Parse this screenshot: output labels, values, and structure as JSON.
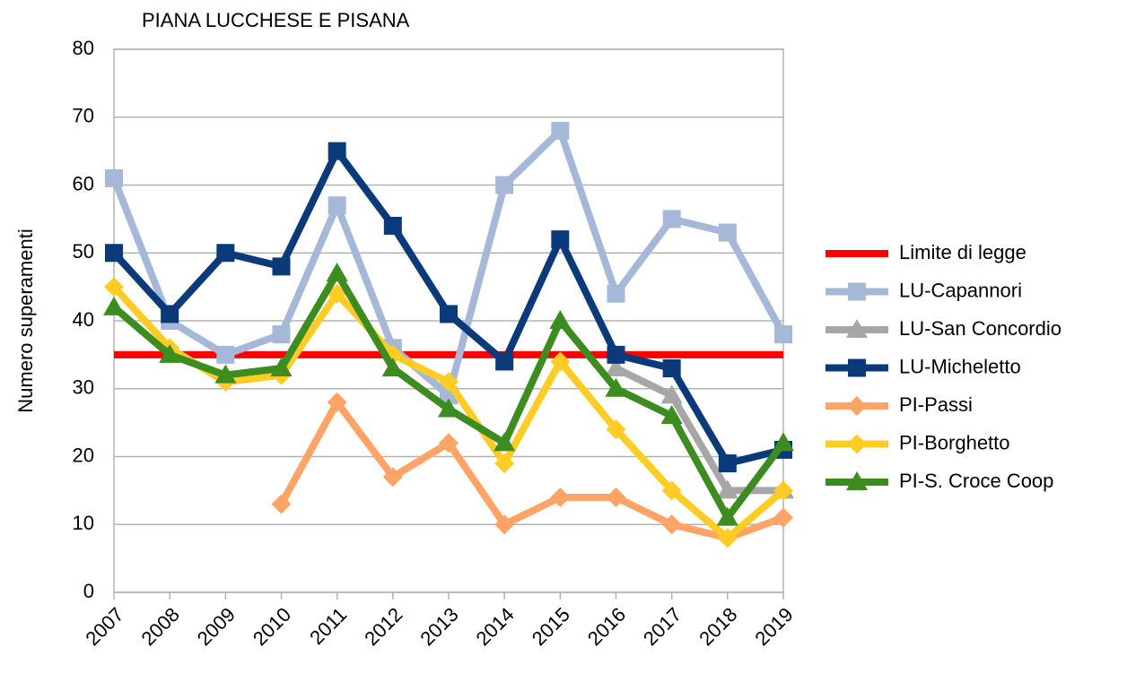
{
  "chart_data": {
    "type": "line",
    "title": "PIANA LUCCHESE E PISANA",
    "y_label": "Numero superamenti",
    "categories": [
      "2007",
      "2008",
      "2009",
      "2010",
      "2011",
      "2012",
      "2013",
      "2014",
      "2015",
      "2016",
      "2017",
      "2018",
      "2019"
    ],
    "ylim": [
      0,
      80
    ],
    "yticks": [
      0,
      10,
      20,
      30,
      40,
      50,
      60,
      70,
      80
    ],
    "grid": true,
    "legend": "right",
    "series": [
      {
        "name": "Limite di legge",
        "color": "#ff0000",
        "marker": "none",
        "values": [
          35,
          35,
          35,
          35,
          35,
          35,
          35,
          35,
          35,
          35,
          35,
          35,
          35
        ]
      },
      {
        "name": "LU-Capannori",
        "color": "#a5b8d8",
        "marker": "square",
        "values": [
          61,
          40,
          35,
          38,
          57,
          36,
          29,
          60,
          68,
          44,
          55,
          53,
          38
        ]
      },
      {
        "name": "LU-San Concordio",
        "color": "#a6a6a6",
        "marker": "triangle",
        "values": [
          null,
          null,
          null,
          null,
          null,
          null,
          null,
          null,
          null,
          33,
          29,
          15,
          15
        ]
      },
      {
        "name": "LU-Micheletto",
        "color": "#0b3a7a",
        "marker": "square",
        "values": [
          50,
          41,
          50,
          48,
          65,
          54,
          41,
          34,
          52,
          35,
          33,
          19,
          21
        ]
      },
      {
        "name": "PI-Passi",
        "color": "#ffa366",
        "marker": "diamond",
        "values": [
          null,
          null,
          null,
          13,
          28,
          17,
          22,
          10,
          14,
          14,
          10,
          8,
          11
        ]
      },
      {
        "name": "PI-Borghetto",
        "color": "#ffcc26",
        "marker": "diamond",
        "values": [
          45,
          36,
          31,
          32,
          44,
          35,
          31,
          19,
          34,
          24,
          15,
          8,
          15
        ]
      },
      {
        "name": "PI-S. Croce Coop",
        "color": "#3d8c1f",
        "marker": "triangle",
        "values": [
          42,
          35,
          32,
          33,
          47,
          33,
          27,
          22,
          40,
          30,
          26,
          11,
          22
        ]
      }
    ]
  }
}
